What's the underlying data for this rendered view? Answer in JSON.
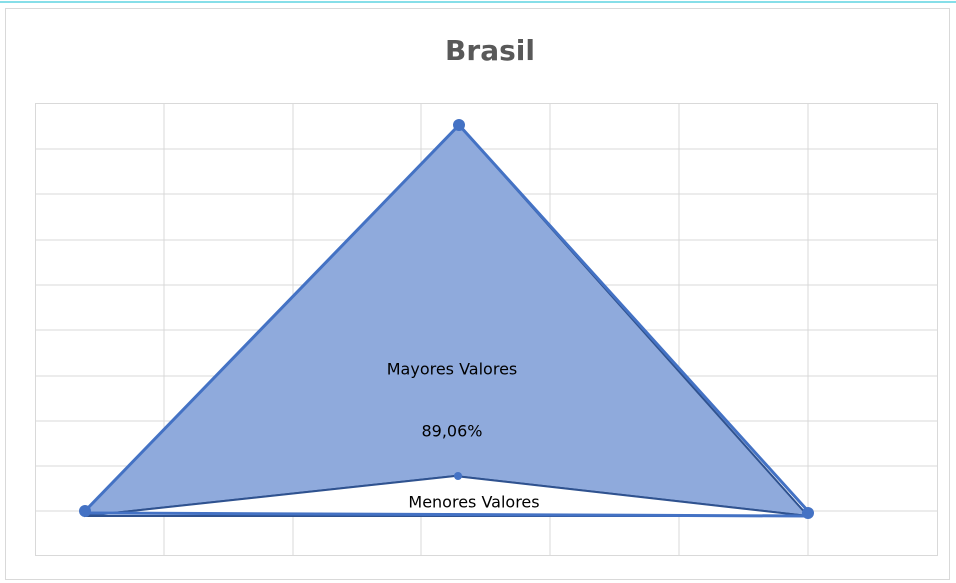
{
  "title": "Brasil",
  "labels": {
    "upper": "Mayores Valores",
    "percent": "89,06%",
    "lower": "Menores Valores"
  }
}
